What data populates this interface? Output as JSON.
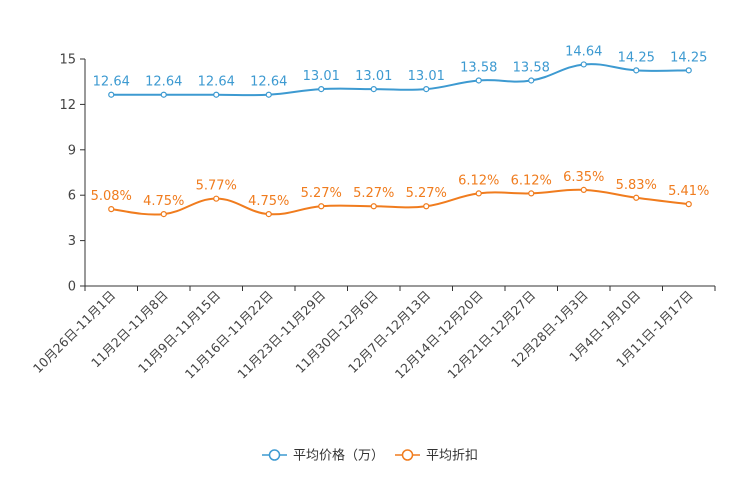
{
  "chart_data": {
    "type": "line",
    "categories": [
      "10月26日-11月1日",
      "11月2日-11月8日",
      "11月9日-11月15日",
      "11月16日-11月22日",
      "11月23日-11月29日",
      "11月30日-12月6日",
      "12月7日-12月13日",
      "12月14日-12月20日",
      "12月21日-12月27日",
      "12月28日-1月3日",
      "1月4日-1月10日",
      "1月11日-1月17日"
    ],
    "series": [
      {
        "name": "平均价格（万）",
        "color": "#3d9ad1",
        "values": [
          12.64,
          12.64,
          12.64,
          12.64,
          13.01,
          13.01,
          13.01,
          13.58,
          13.58,
          14.64,
          14.25,
          14.25
        ],
        "labels": [
          "12.64",
          "12.64",
          "12.64",
          "12.64",
          "13.01",
          "13.01",
          "13.01",
          "13.58",
          "13.58",
          "14.64",
          "14.25",
          "14.25"
        ]
      },
      {
        "name": "平均折扣",
        "color": "#f07c1e",
        "values": [
          5.08,
          4.75,
          5.77,
          4.75,
          5.27,
          5.27,
          5.27,
          6.12,
          6.12,
          6.35,
          5.83,
          5.41
        ],
        "labels": [
          "5.08%",
          "4.75%",
          "5.77%",
          "4.75%",
          "5.27%",
          "5.27%",
          "5.27%",
          "6.12%",
          "6.12%",
          "6.35%",
          "5.83%",
          "5.41%"
        ]
      }
    ],
    "yticks": [
      "0",
      "3",
      "6",
      "9",
      "12",
      "15"
    ],
    "ylim": [
      0,
      15
    ],
    "legend_position": "bottom-center",
    "grid": false
  }
}
